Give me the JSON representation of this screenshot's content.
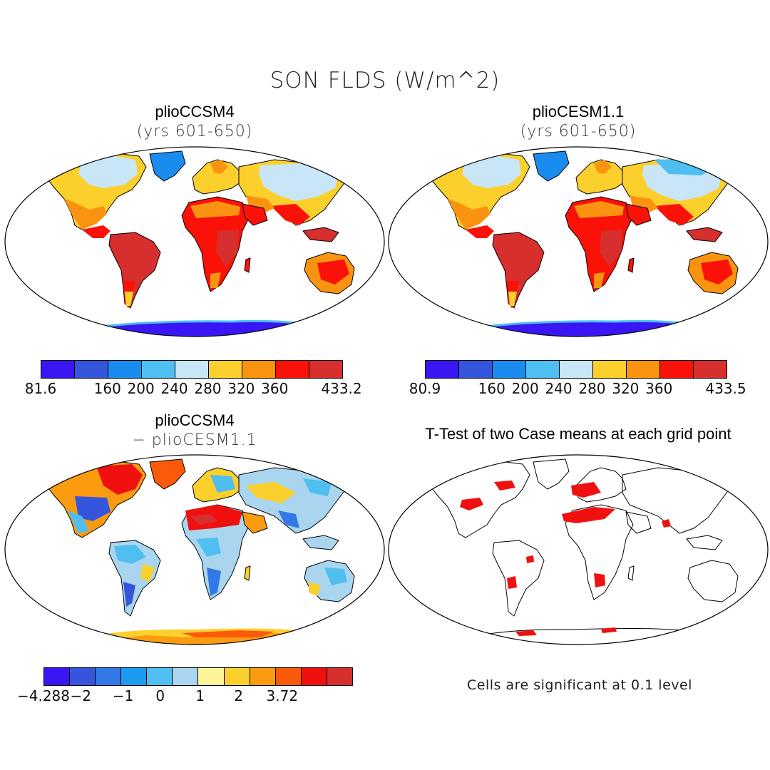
{
  "main_title": "SON FLDS (W/m^2)",
  "panels": {
    "p1": {
      "title": "plioCCSM4",
      "subtitle": "(yrs 601-650)"
    },
    "p2": {
      "title": "plioCESM1.1",
      "subtitle": "(yrs 601-650)"
    },
    "p3": {
      "title": "plioCCSM4",
      "subtitle": "− plioCESM1.1"
    },
    "p4": {
      "title": "T-Test of two Case means at each grid point",
      "footnote": "Cells are significant at 0.1 level"
    }
  },
  "colorbars": {
    "cb1": {
      "colors": [
        "#3a16f5",
        "#3555dc",
        "#1a8cf0",
        "#4fbef0",
        "#c8e6f5",
        "#fcd02c",
        "#fa9410",
        "#fa1208",
        "#d62f2d"
      ],
      "labels": [
        {
          "text": "81.6",
          "pos": 0
        },
        {
          "text": "160",
          "pos": 2
        },
        {
          "text": "200",
          "pos": 3
        },
        {
          "text": "240",
          "pos": 4
        },
        {
          "text": "280",
          "pos": 5
        },
        {
          "text": "320",
          "pos": 6
        },
        {
          "text": "360",
          "pos": 7
        },
        {
          "text": "433.2",
          "pos": 9
        }
      ]
    },
    "cb2": {
      "colors": [
        "#3a16f5",
        "#3555dc",
        "#1a8cf0",
        "#4fbef0",
        "#c8e6f5",
        "#fcd02c",
        "#fa9410",
        "#fa1208",
        "#d62f2d"
      ],
      "labels": [
        {
          "text": "80.9",
          "pos": 0
        },
        {
          "text": "160",
          "pos": 2
        },
        {
          "text": "200",
          "pos": 3
        },
        {
          "text": "240",
          "pos": 4
        },
        {
          "text": "280",
          "pos": 5
        },
        {
          "text": "320",
          "pos": 6
        },
        {
          "text": "360",
          "pos": 7
        },
        {
          "text": "433.5",
          "pos": 9
        }
      ]
    },
    "cb3": {
      "colors": [
        "#3a16f5",
        "#3555dc",
        "#3278e6",
        "#1a9cf0",
        "#4fbef0",
        "#a9d6ee",
        "#fdf59a",
        "#fcd02c",
        "#fa9b10",
        "#fa5a0a",
        "#f01010",
        "#d62f2d"
      ],
      "labels": [
        {
          "text": "−4.288",
          "pos": 0
        },
        {
          "text": "−2",
          "pos": 1.45
        },
        {
          "text": "−1",
          "pos": 3.1
        },
        {
          "text": "0",
          "pos": 4.55
        },
        {
          "text": "1",
          "pos": 6.1
        },
        {
          "text": "2",
          "pos": 7.6
        },
        {
          "text": "3.72",
          "pos": 9.3
        }
      ]
    }
  }
}
